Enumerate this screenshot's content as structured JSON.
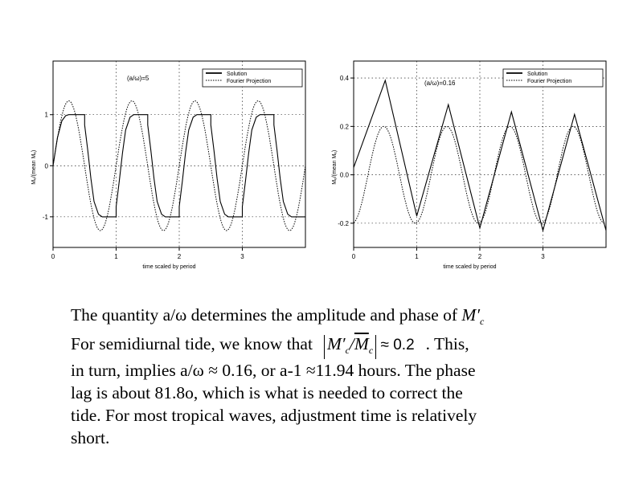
{
  "charts": [
    {
      "chart_data": {
        "type": "line",
        "title": "",
        "annotation": "(a/ω)=5",
        "xlabel": "time scaled by period",
        "ylabel": "Mₑ/(mean Mₑ)",
        "xlim": [
          0,
          4
        ],
        "ylim": [
          -1.6,
          2.05
        ],
        "x_ticks": [
          "0",
          "1",
          "2",
          "3"
        ],
        "x_tick_values": [
          0,
          1,
          2,
          3
        ],
        "y_ticks": [
          "1",
          "0",
          "-1"
        ],
        "y_tick_values": [
          1,
          0,
          -1
        ],
        "grid": true,
        "legend_position": "top-right",
        "series": [
          {
            "name": "Solution",
            "style": "solid",
            "points": [
              [
                0,
                0
              ],
              [
                0.07,
                0.55
              ],
              [
                0.14,
                0.88
              ],
              [
                0.2,
                0.98
              ],
              [
                0.25,
                1
              ],
              [
                0.5,
                1
              ],
              [
                0.5,
                0.8
              ],
              [
                0.55,
                0.3
              ],
              [
                0.6,
                -0.25
              ],
              [
                0.65,
                -0.7
              ],
              [
                0.72,
                -0.95
              ],
              [
                0.78,
                -1
              ],
              [
                1.0,
                -1
              ],
              [
                1.0,
                -0.8
              ],
              [
                1.05,
                -0.3
              ],
              [
                1.1,
                0.25
              ],
              [
                1.15,
                0.7
              ],
              [
                1.22,
                0.95
              ],
              [
                1.28,
                1
              ],
              [
                1.5,
                1
              ],
              [
                1.5,
                0.8
              ],
              [
                1.55,
                0.3
              ],
              [
                1.6,
                -0.25
              ],
              [
                1.65,
                -0.7
              ],
              [
                1.72,
                -0.95
              ],
              [
                1.78,
                -1
              ],
              [
                2.0,
                -1
              ],
              [
                2.0,
                -0.8
              ],
              [
                2.05,
                -0.3
              ],
              [
                2.1,
                0.25
              ],
              [
                2.15,
                0.7
              ],
              [
                2.22,
                0.95
              ],
              [
                2.28,
                1
              ],
              [
                2.5,
                1
              ],
              [
                2.5,
                0.8
              ],
              [
                2.55,
                0.3
              ],
              [
                2.6,
                -0.25
              ],
              [
                2.65,
                -0.7
              ],
              [
                2.72,
                -0.95
              ],
              [
                2.78,
                -1
              ],
              [
                3.0,
                -1
              ],
              [
                3.0,
                -0.8
              ],
              [
                3.05,
                -0.3
              ],
              [
                3.1,
                0.25
              ],
              [
                3.15,
                0.7
              ],
              [
                3.22,
                0.95
              ],
              [
                3.28,
                1
              ],
              [
                3.5,
                1
              ],
              [
                3.5,
                0.8
              ],
              [
                3.55,
                0.3
              ],
              [
                3.6,
                -0.25
              ],
              [
                3.65,
                -0.7
              ],
              [
                3.72,
                -0.95
              ],
              [
                3.78,
                -1
              ],
              [
                4.0,
                -1
              ]
            ]
          },
          {
            "name": "Fourier Projection",
            "style": "dotted",
            "amplitude": 1.27,
            "phase_turns": 0.0
          }
        ]
      }
    },
    {
      "chart_data": {
        "type": "line",
        "title": "",
        "annotation": "(a/ω)=0.16",
        "xlabel": "time scaled by period",
        "ylabel": "Mₑ/(mean Mₑ)",
        "xlim": [
          0,
          4
        ],
        "ylim": [
          -0.3,
          0.47
        ],
        "x_ticks": [
          "0",
          "1",
          "2",
          "3"
        ],
        "x_tick_values": [
          0,
          1,
          2,
          3
        ],
        "y_ticks": [
          "0.4",
          "0.2",
          "0.0",
          "-0.2"
        ],
        "y_tick_values": [
          0.4,
          0.2,
          0.0,
          -0.2
        ],
        "grid": true,
        "legend_position": "top-right",
        "series": [
          {
            "name": "Solution",
            "style": "solid",
            "points": [
              [
                0,
                0.03
              ],
              [
                0.5,
                0.39
              ],
              [
                1.0,
                -0.17
              ],
              [
                1.5,
                0.29
              ],
              [
                2.0,
                -0.22
              ],
              [
                2.5,
                0.26
              ],
              [
                3.0,
                -0.23
              ],
              [
                3.5,
                0.25
              ],
              [
                4.0,
                -0.23
              ]
            ]
          },
          {
            "name": "Fourier Projection",
            "style": "dotted",
            "amplitude": 0.2,
            "phase_turns": 0.227
          }
        ]
      }
    }
  ],
  "caption": {
    "line1_a": "The quantity a/ω determines the amplitude and phase of ",
    "line2_a": "For semidiurnal tide, we know that",
    "line2_b": ".  This,",
    "line3": "in turn, implies a/ω ≈ 0.16,  or a-1 ≈11.94 hours.  The phase",
    "line4": "lag is about 81.8o, which is what is needed to correct the",
    "line5": "tide.  For most tropical waves, adjustment time is relatively",
    "line6": "short.",
    "math_symbol": "M′",
    "math_sub": "c",
    "math_num": "M′",
    "math_slash": "/",
    "math_den": "M",
    "math_rhs": "≈ 0.2"
  }
}
